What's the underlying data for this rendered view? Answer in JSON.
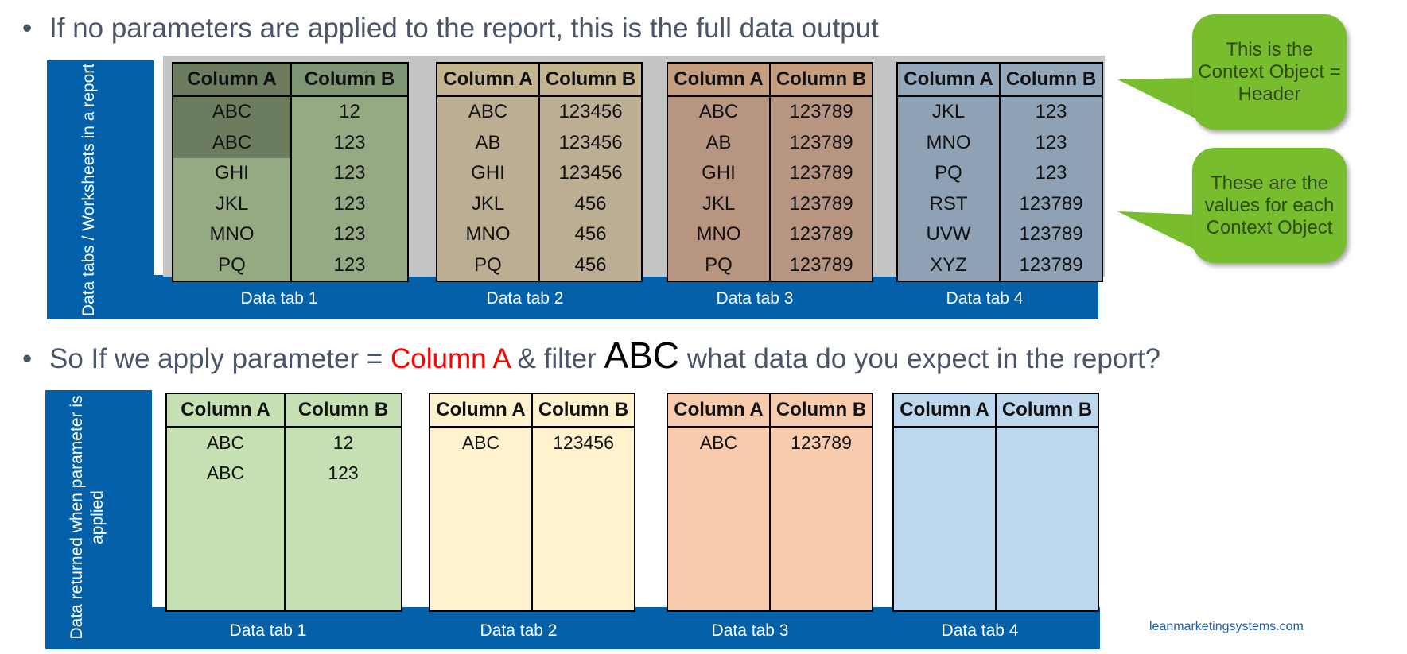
{
  "top_bullet": "If no parameters are applied to the report, this is the full data output",
  "bottom_bullet": {
    "prefix": "So If we apply parameter = ",
    "highlight": "Column A",
    "middle": " & filter ",
    "filter_value": "ABC",
    "suffix": " what data do you expect in the report?"
  },
  "top_panel": {
    "side_label": "Data tabs / Worksheets in a report",
    "tabs": [
      {
        "label": "Data tab 1",
        "header_color": "#7f9472",
        "body_color": "#95a982",
        "headers": [
          "Column A",
          "Column B"
        ],
        "rows": [
          [
            "ABC",
            "12"
          ],
          [
            "ABC",
            "123"
          ],
          [
            "GHI",
            "123"
          ],
          [
            "JKL",
            "123"
          ],
          [
            "MNO",
            "123"
          ],
          [
            "PQ",
            "123"
          ]
        ]
      },
      {
        "label": "Data tab 2",
        "header_color": "#c4b48f",
        "body_color": "#bcae93",
        "headers": [
          "Column A",
          "Column B"
        ],
        "rows": [
          [
            "ABC",
            "123456"
          ],
          [
            "AB",
            "123456"
          ],
          [
            "GHI",
            "123456"
          ],
          [
            "JKL",
            "456"
          ],
          [
            "MNO",
            "456"
          ],
          [
            "PQ",
            "456"
          ]
        ]
      },
      {
        "label": "Data tab 3",
        "header_color": "#c79d7f",
        "body_color": "#b89581",
        "headers": [
          "Column A",
          "Column B"
        ],
        "rows": [
          [
            "ABC",
            "123789"
          ],
          [
            "AB",
            "123789"
          ],
          [
            "GHI",
            "123789"
          ],
          [
            "JKL",
            "123789"
          ],
          [
            "MNO",
            "123789"
          ],
          [
            "PQ",
            "123789"
          ]
        ]
      },
      {
        "label": "Data tab 4",
        "header_color": "#94a8bc",
        "body_color": "#8fa2b5",
        "headers": [
          "Column A",
          "Column B"
        ],
        "rows": [
          [
            "JKL",
            "123"
          ],
          [
            "MNO",
            "123"
          ],
          [
            "PQ",
            "123"
          ],
          [
            "RST",
            "123789"
          ],
          [
            "UVW",
            "123789"
          ],
          [
            "XYZ",
            "123789"
          ]
        ]
      }
    ]
  },
  "bottom_panel": {
    "side_label": "Data returned when parameter is applied",
    "tabs": [
      {
        "label": "Data tab 1",
        "color": "#c6e0b4",
        "headers": [
          "Column A",
          "Column B"
        ],
        "rows": [
          [
            "ABC",
            "12"
          ],
          [
            "ABC",
            "123"
          ]
        ]
      },
      {
        "label": "Data tab 2",
        "color": "#fff2cc",
        "headers": [
          "Column A",
          "Column B"
        ],
        "rows": [
          [
            "ABC",
            "123456"
          ]
        ]
      },
      {
        "label": "Data tab 3",
        "color": "#f8cbad",
        "headers": [
          "Column A",
          "Column B"
        ],
        "rows": [
          [
            "ABC",
            "123789"
          ]
        ]
      },
      {
        "label": "Data tab 4",
        "color": "#bdd7ee",
        "headers": [
          "Column A",
          "Column B"
        ],
        "rows": []
      }
    ]
  },
  "callouts": {
    "header": "This is the Context Object = Header",
    "values": "These are the values for each Context Object"
  },
  "footer_url": "leanmarketingsystems.com",
  "colors": {
    "panel_blue": "#0460a9",
    "callout_green": "#77bd2d",
    "highlight_red": "#ff0000"
  }
}
